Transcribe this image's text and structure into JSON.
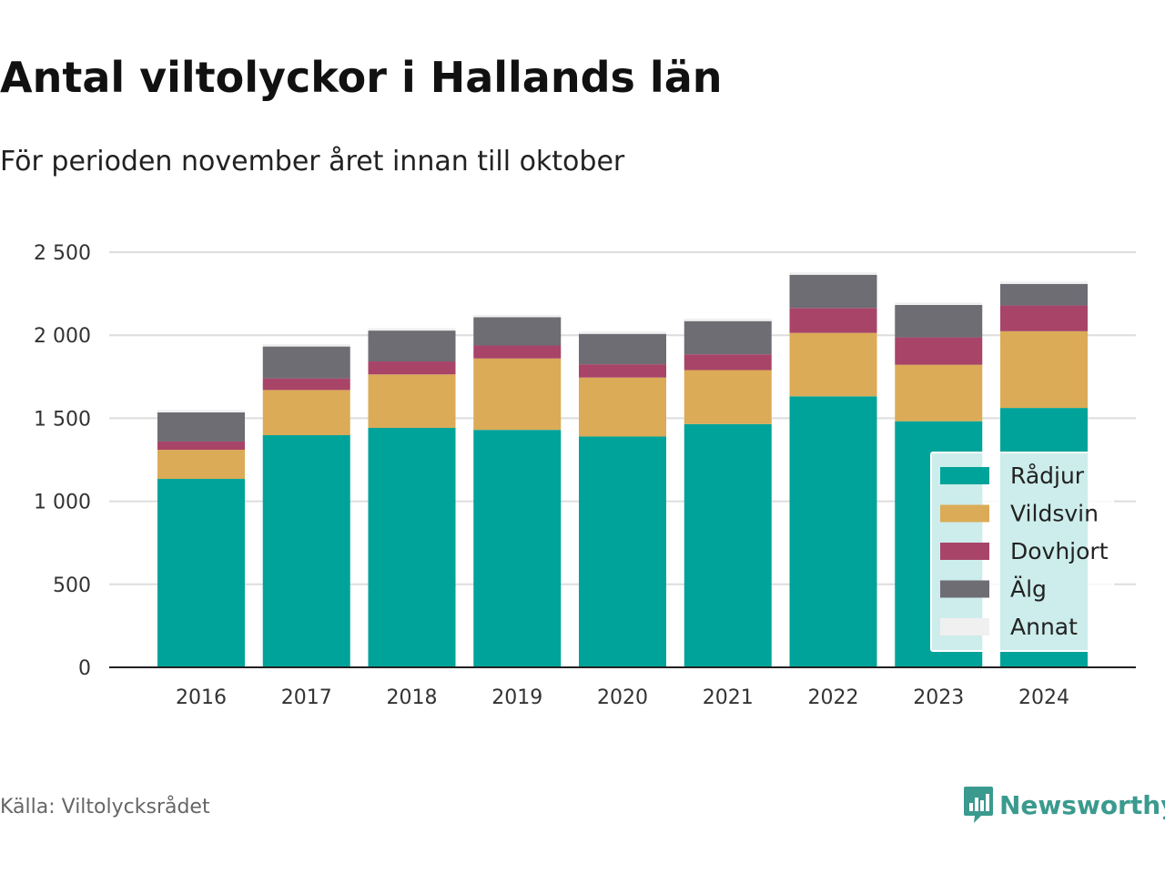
{
  "header": {
    "title": "Antal viltolyckor i Hallands län",
    "subtitle": "För perioden november året innan till oktober"
  },
  "footer": {
    "source": "Källa: Viltolycksrådet",
    "brand": "Newsworthy"
  },
  "chart_data": {
    "type": "bar",
    "stacked": true,
    "categories": [
      "2016",
      "2017",
      "2018",
      "2019",
      "2020",
      "2021",
      "2022",
      "2023",
      "2024"
    ],
    "series": [
      {
        "name": "Rådjur",
        "color": "#00a39a",
        "values": [
          1135,
          1398,
          1442,
          1430,
          1390,
          1465,
          1632,
          1482,
          1562
        ]
      },
      {
        "name": "Vildsvin",
        "color": "#dbab57",
        "values": [
          175,
          272,
          322,
          430,
          355,
          325,
          382,
          340,
          462
        ]
      },
      {
        "name": "Dovhjort",
        "color": "#a84468",
        "values": [
          50,
          70,
          78,
          78,
          80,
          95,
          150,
          165,
          155
        ]
      },
      {
        "name": "Älg",
        "color": "#6e6d74",
        "values": [
          175,
          192,
          186,
          170,
          183,
          200,
          200,
          195,
          130
        ]
      },
      {
        "name": "Annat",
        "color": "#f0f0f0",
        "values": [
          15,
          15,
          15,
          15,
          15,
          15,
          15,
          15,
          15
        ]
      }
    ],
    "yticks": [
      "0",
      "500",
      "1 000",
      "1 500",
      "2 000",
      "2 500"
    ],
    "ytick_values": [
      0,
      500,
      1000,
      1500,
      2000,
      2500
    ],
    "ylim": [
      0,
      2500
    ],
    "grid": true,
    "legend_position": "bottom-right"
  }
}
